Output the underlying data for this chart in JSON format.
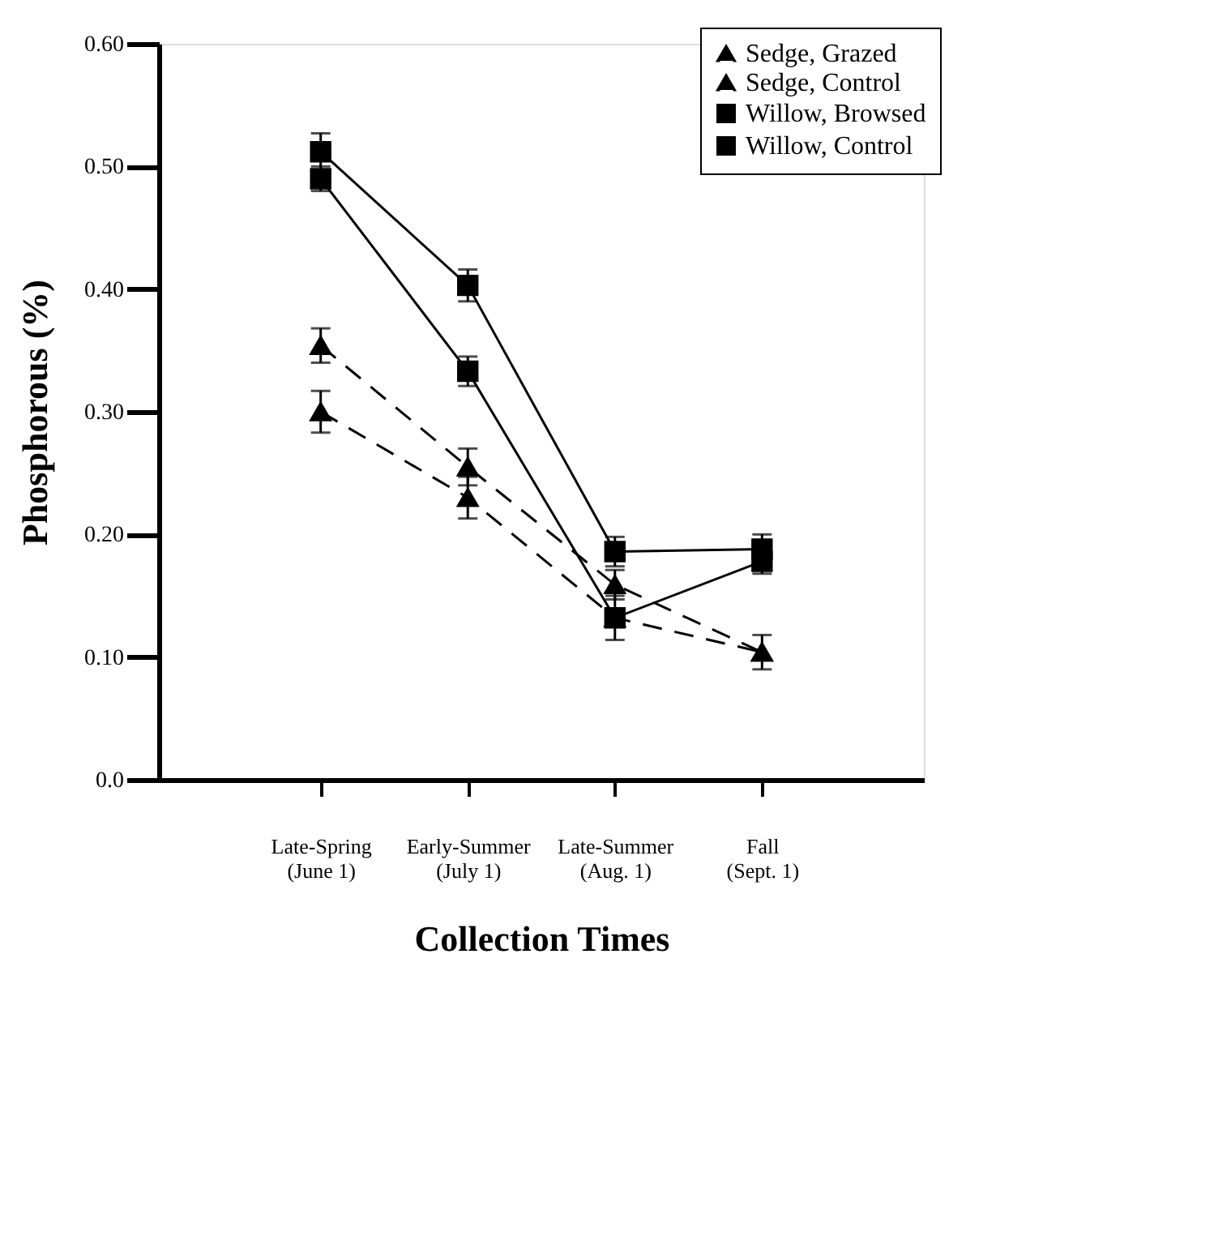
{
  "chart_data": {
    "type": "line",
    "xlabel": "Collection Times",
    "ylabel": "Phosphorous (%)",
    "categories": [
      "Late-Spring\n(June 1)",
      "Early-Summer\n(July 1)",
      "Late-Summer\n(Aug. 1)",
      "Fall\n(Sept. 1)"
    ],
    "series": [
      {
        "name": "Sedge, Grazed",
        "color": "#000000",
        "marker": "triangle",
        "line_style": "dashed",
        "values": [
          0.354,
          0.255,
          0.159,
          0.104
        ],
        "errors": [
          0.014,
          0.015,
          0.012,
          null
        ]
      },
      {
        "name": "Sedge, Control",
        "color": "#000000",
        "marker": "triangle",
        "line_style": "dashed",
        "values": [
          0.3,
          0.23,
          0.132,
          0.104
        ],
        "errors": [
          0.017,
          0.017,
          null,
          0.014
        ]
      },
      {
        "name": "Willow, Browsed",
        "color": "#000000",
        "marker": "square",
        "line_style": "solid",
        "values": [
          0.512,
          0.403,
          0.186,
          0.188
        ],
        "errors": [
          0.015,
          0.013,
          0.012,
          0.012
        ]
      },
      {
        "name": "Willow, Control",
        "color": "#000000",
        "marker": "square",
        "line_style": "solid",
        "values": [
          0.49,
          0.333,
          0.132,
          0.178
        ],
        "errors": [
          0.01,
          0.012,
          0.018,
          0.01
        ]
      }
    ],
    "ylim": [
      0,
      0.6
    ],
    "yticks": [
      {
        "value": 0,
        "label": "0.0"
      },
      {
        "value": 0.1,
        "label": "0.10"
      },
      {
        "value": 0.2,
        "label": "0.20"
      },
      {
        "value": 0.3,
        "label": "0.30"
      },
      {
        "value": 0.4,
        "label": "0.40"
      },
      {
        "value": 0.5,
        "label": "0.50"
      },
      {
        "value": 0.6,
        "label": "0.60"
      }
    ],
    "grid": false,
    "legend": "top right"
  }
}
